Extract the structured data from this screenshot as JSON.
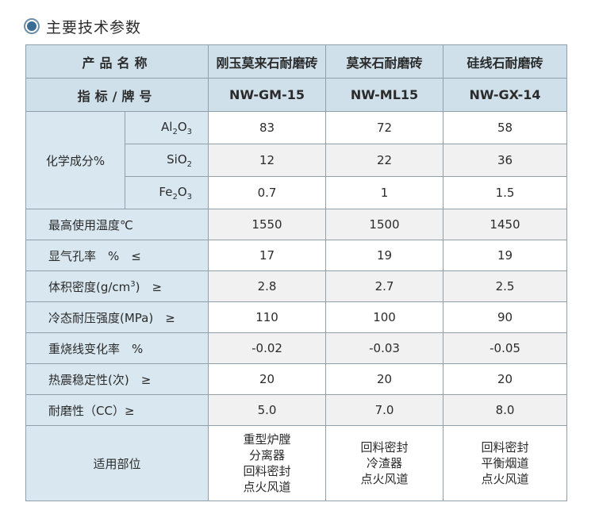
{
  "section_title": "主要技术参数",
  "table": {
    "header": {
      "name_label": "产品名称",
      "grade_label": "指标/牌号",
      "products": [
        {
          "name": "刚玉莫来石耐磨砖",
          "grade": "NW-GM-15"
        },
        {
          "name": "莫来石耐磨砖",
          "grade": "NW-ML15"
        },
        {
          "name": "硅线石耐磨砖",
          "grade": "NW-GX-14"
        }
      ]
    },
    "chemical": {
      "label": "化学成分%",
      "rows": [
        {
          "el": "Al",
          "s1": "2",
          "el2": "O",
          "s2": "3",
          "values": [
            "83",
            "72",
            "58"
          ]
        },
        {
          "el": "Si",
          "s1": "",
          "el2": "O",
          "s2": "2",
          "values": [
            "12",
            "22",
            "36"
          ]
        },
        {
          "el": "Fe",
          "s1": "2",
          "el2": "O",
          "s2": "3",
          "values": [
            "0.7",
            "1",
            "1.5"
          ]
        }
      ]
    },
    "max_temp": {
      "label": "最高使用温度℃",
      "values": [
        "1550",
        "1500",
        "1450"
      ]
    },
    "porosity": {
      "label": "显气孔率　%　≤",
      "values": [
        "17",
        "19",
        "19"
      ]
    },
    "density": {
      "label_pre": "体积密度(g/cm",
      "label_sup": "3",
      "label_post": ")　≥",
      "values": [
        "2.8",
        "2.7",
        "2.5"
      ]
    },
    "strength": {
      "label": "冷态耐压强度(MPa)　≥",
      "values": [
        "110",
        "100",
        "90"
      ]
    },
    "reheat": {
      "label": "重烧线变化率　%",
      "values": [
        "-0.02",
        "-0.03",
        "-0.05"
      ]
    },
    "thermal_shock": {
      "label": "热震稳定性(次)　≥",
      "values": [
        "20",
        "20",
        "20"
      ]
    },
    "abrasion": {
      "label": "耐磨性（CC）≥",
      "values": [
        "5.0",
        "7.0",
        "8.0"
      ]
    },
    "application": {
      "label": "适用部位",
      "values": [
        [
          "重型炉膛",
          "分离器",
          "回料密封",
          "点火风道"
        ],
        [
          "回料密封",
          "冷渣器",
          "点火风道"
        ],
        [
          "回料密封",
          "平衡烟道",
          "点火风道"
        ]
      ]
    }
  }
}
